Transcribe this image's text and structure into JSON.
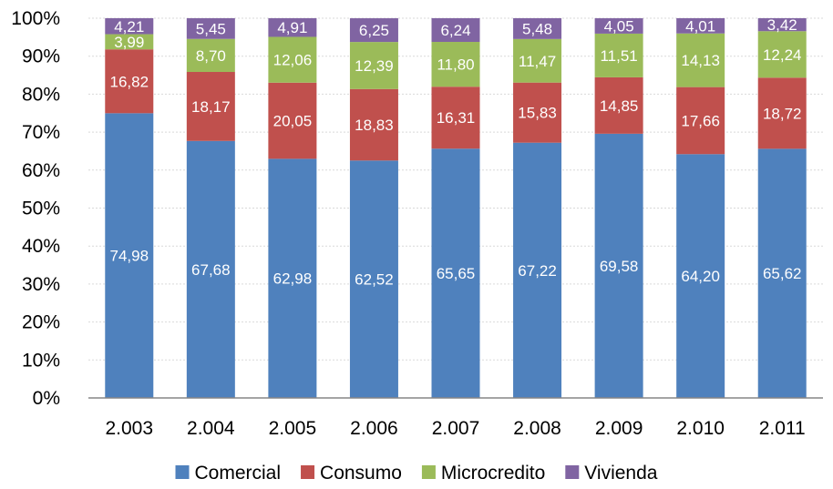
{
  "chart_data": {
    "type": "bar",
    "stacked": true,
    "percent": true,
    "categories": [
      "2.003",
      "2.004",
      "2.005",
      "2.006",
      "2.007",
      "2.008",
      "2.009",
      "2.010",
      "2.011"
    ],
    "series": [
      {
        "name": "Comercial",
        "color": "#4f81bd",
        "values": [
          74.98,
          67.68,
          62.98,
          62.52,
          65.65,
          67.22,
          69.58,
          64.2,
          65.62
        ],
        "labels": [
          "74,98",
          "67,68",
          "62,98",
          "62,52",
          "65,65",
          "67,22",
          "69,58",
          "64,20",
          "65,62"
        ]
      },
      {
        "name": "Consumo",
        "color": "#c0504d",
        "values": [
          16.82,
          18.17,
          20.05,
          18.83,
          16.31,
          15.83,
          14.85,
          17.66,
          18.72
        ],
        "labels": [
          "16,82",
          "18,17",
          "20,05",
          "18,83",
          "16,31",
          "15,83",
          "14,85",
          "17,66",
          "18,72"
        ]
      },
      {
        "name": "Microcredito",
        "color": "#9bbb59",
        "values": [
          3.99,
          8.7,
          12.06,
          12.39,
          11.8,
          11.47,
          11.51,
          14.13,
          12.24
        ],
        "labels": [
          "3,99",
          "8,70",
          "12,06",
          "12,39",
          "11,80",
          "11,47",
          "11,51",
          "14,13",
          "12,24"
        ]
      },
      {
        "name": "Vivienda",
        "color": "#8064a2",
        "values": [
          4.21,
          5.45,
          4.91,
          6.25,
          6.24,
          5.48,
          4.05,
          4.01,
          3.42
        ],
        "labels": [
          "4,21",
          "5,45",
          "4,91",
          "6,25",
          "6,24",
          "5,48",
          "4,05",
          "4,01",
          "3,42"
        ]
      }
    ],
    "y_ticks": [
      "0%",
      "10%",
      "20%",
      "30%",
      "40%",
      "50%",
      "60%",
      "70%",
      "80%",
      "90%",
      "100%"
    ],
    "ylim": [
      0,
      100
    ],
    "grid": true,
    "legend": "bottom",
    "title": "",
    "xlabel": "",
    "ylabel": ""
  }
}
